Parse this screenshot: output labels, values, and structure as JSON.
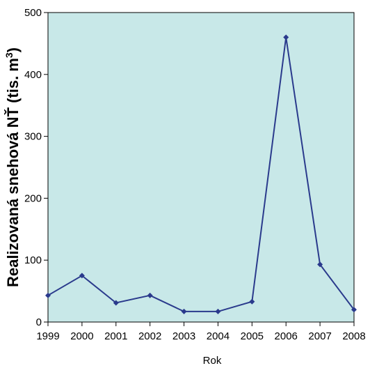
{
  "chart_data": {
    "type": "line",
    "xlabel": "Rok",
    "ylabel": "Realizovaná  snehová NŤ (tis. m",
    "ylabel_superscript": "3",
    "ylabel_close": ")",
    "categories": [
      "1999",
      "2000",
      "2001",
      "2002",
      "2003",
      "2004",
      "2005",
      "2006",
      "2007",
      "2008"
    ],
    "series": [
      {
        "values": [
          43,
          75,
          31,
          43,
          17,
          17,
          33,
          460,
          93,
          20
        ]
      }
    ],
    "ylim": [
      0,
      500
    ],
    "yticks": [
      "0",
      "100",
      "200",
      "300",
      "400",
      "500"
    ],
    "grid": false,
    "colors": {
      "plot_bg": "#c8e8e8",
      "line": "#2a3a8c",
      "axis": "#000000"
    }
  }
}
